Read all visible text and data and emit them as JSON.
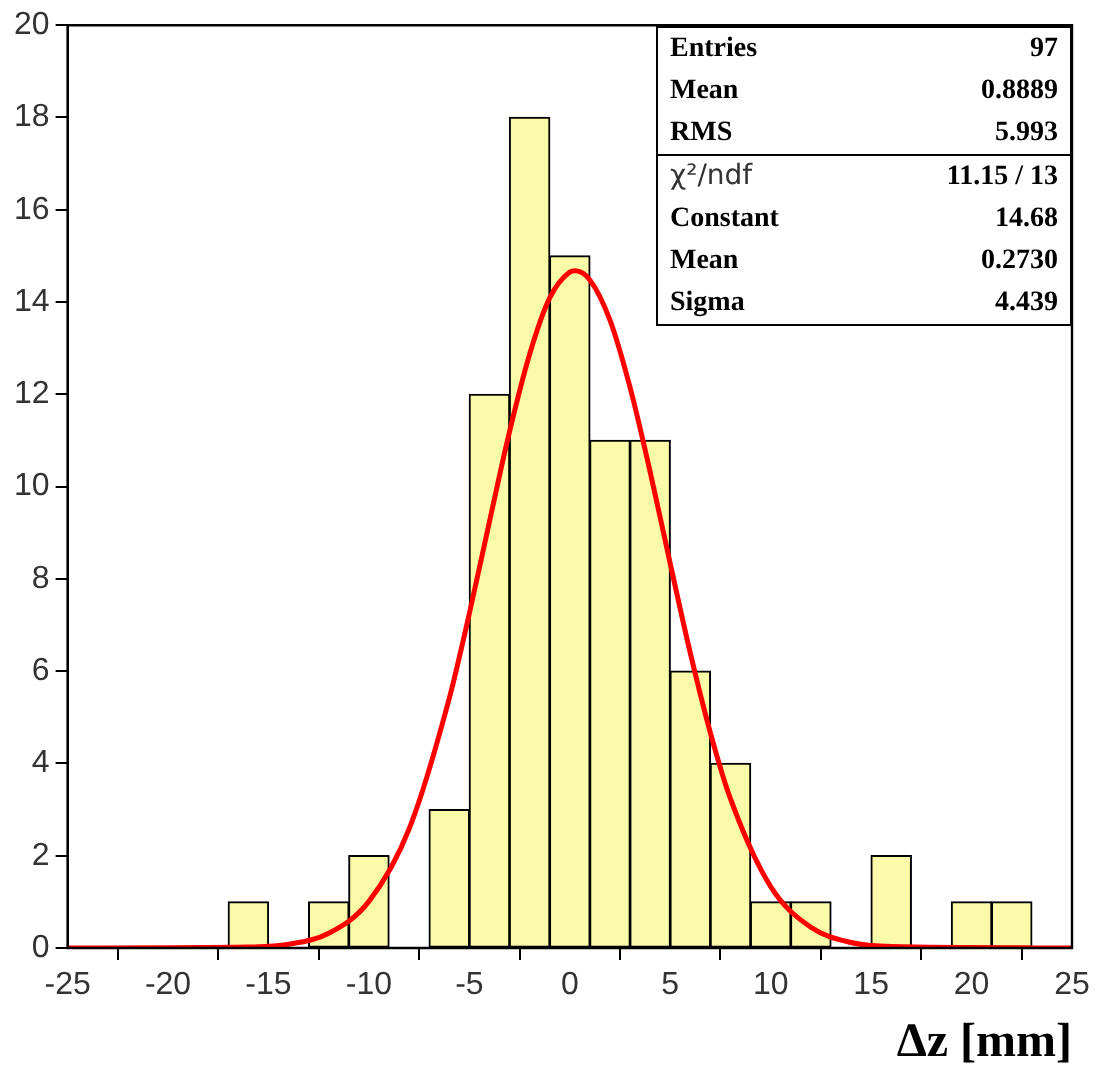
{
  "chart_data": {
    "type": "histogram",
    "xlabel": "Δz [mm]",
    "bins": [
      -25,
      -23,
      -21,
      -19,
      -17,
      -15,
      -13,
      -11,
      -9,
      -7,
      -5,
      -3,
      -1,
      1,
      3,
      5,
      7,
      9,
      11,
      13,
      15,
      17,
      19,
      21,
      23,
      25
    ],
    "values": [
      0,
      0,
      0,
      0,
      1,
      0,
      1,
      2,
      0,
      3,
      12,
      18,
      15,
      11,
      11,
      6,
      4,
      1,
      1,
      0,
      2,
      0,
      1,
      1,
      0
    ],
    "color": "#fafaa8",
    "series": [
      {
        "type": "line",
        "color": "#ff0000",
        "x": [
          -25,
          -16,
          -14,
          -12,
          -10,
          -8,
          -6,
          -5,
          -4,
          -3,
          -2,
          -1,
          0,
          0.273,
          1,
          2,
          3,
          4,
          5,
          6,
          7,
          8,
          10,
          12,
          14,
          16,
          25
        ],
        "values": [
          0,
          0.02,
          0.08,
          0.32,
          1.01,
          2.58,
          5.41,
          7.25,
          9.24,
          11.19,
          12.87,
          14.09,
          14.65,
          14.68,
          14.48,
          13.61,
          12.15,
          10.32,
          8.33,
          6.39,
          4.66,
          3.23,
          1.33,
          0.45,
          0.12,
          0.03,
          0
        ]
      }
    ],
    "xlim": [
      -25,
      25
    ],
    "xticks": [
      -25,
      -20,
      -15,
      -10,
      -5,
      0,
      5,
      10,
      15,
      20,
      25
    ],
    "ylim": [
      0,
      20
    ],
    "yticks": [
      0,
      2,
      4,
      6,
      8,
      10,
      12,
      14,
      16,
      18,
      20
    ],
    "grid": false,
    "legend": false,
    "marker": "none",
    "annotations": [
      "Entries 97",
      "Mean 0.8889",
      "RMS 5.993",
      "χ²/ndf 11.15 / 13",
      "Constant 14.68",
      "Mean 0.2730",
      "Sigma 4.439"
    ]
  }
}
